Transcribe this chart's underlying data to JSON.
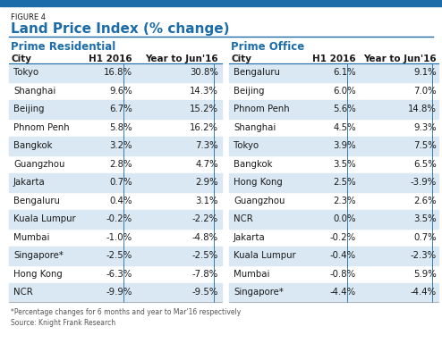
{
  "figure_label": "FIGURE 4",
  "title": "Land Price Index (% change)",
  "section1_title": "Prime Residential",
  "section2_title": "Prime Office",
  "residential": [
    [
      "Tokyo",
      "16.8%",
      "30.8%"
    ],
    [
      "Shanghai",
      "9.6%",
      "14.3%"
    ],
    [
      "Beijing",
      "6.7%",
      "15.2%"
    ],
    [
      "Phnom Penh",
      "5.8%",
      "16.2%"
    ],
    [
      "Bangkok",
      "3.2%",
      "7.3%"
    ],
    [
      "Guangzhou",
      "2.8%",
      "4.7%"
    ],
    [
      "Jakarta",
      "0.7%",
      "2.9%"
    ],
    [
      "Bengaluru",
      "0.4%",
      "3.1%"
    ],
    [
      "Kuala Lumpur",
      "-0.2%",
      "-2.2%"
    ],
    [
      "Mumbai",
      "-1.0%",
      "-4.8%"
    ],
    [
      "Singapore*",
      "-2.5%",
      "-2.5%"
    ],
    [
      "Hong Kong",
      "-6.3%",
      "-7.8%"
    ],
    [
      "NCR",
      "-9.9%",
      "-9.5%"
    ]
  ],
  "office": [
    [
      "Bengaluru",
      "6.1%",
      "9.1%"
    ],
    [
      "Beijing",
      "6.0%",
      "7.0%"
    ],
    [
      "Phnom Penh",
      "5.6%",
      "14.8%"
    ],
    [
      "Shanghai",
      "4.5%",
      "9.3%"
    ],
    [
      "Tokyo",
      "3.9%",
      "7.5%"
    ],
    [
      "Bangkok",
      "3.5%",
      "6.5%"
    ],
    [
      "Hong Kong",
      "2.5%",
      "-3.9%"
    ],
    [
      "Guangzhou",
      "2.3%",
      "2.6%"
    ],
    [
      "NCR",
      "0.0%",
      "3.5%"
    ],
    [
      "Jakarta",
      "-0.2%",
      "0.7%"
    ],
    [
      "Kuala Lumpur",
      "-0.4%",
      "-2.3%"
    ],
    [
      "Mumbai",
      "-0.8%",
      "5.9%"
    ],
    [
      "Singapore*",
      "-4.4%",
      "-4.4%"
    ]
  ],
  "footnote": "*Percentage changes for 6 months and year to Mar'16 respectively",
  "source": "Source: Knight Frank Research",
  "bg_color": "#ffffff",
  "blue": "#1b6ca8",
  "stripe_color": "#d9e8f2",
  "top_bar_color": "#1b6ca8",
  "text_color": "#1a1a1a",
  "footnote_color": "#555555",
  "divider_color": "#1b6ca8"
}
